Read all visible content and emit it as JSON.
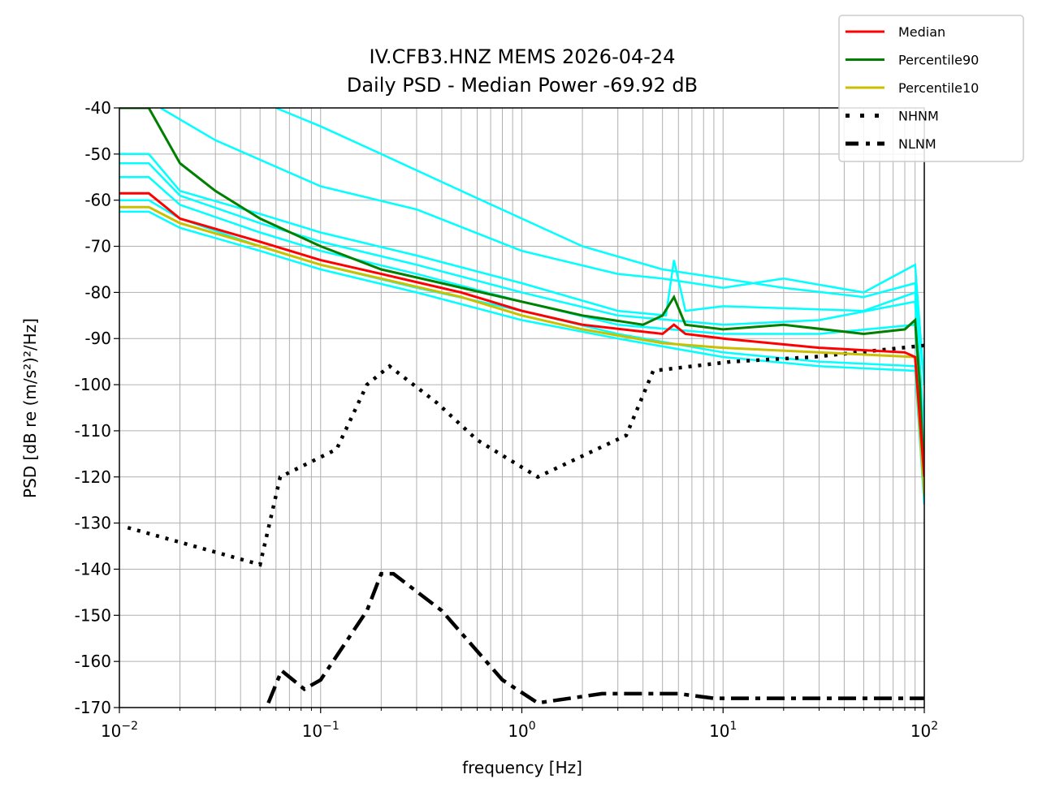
{
  "chart_data": {
    "type": "line",
    "title": "IV.CFB3.HNZ MEMS 2026-04-24",
    "subtitle": "Daily PSD - Median Power -69.92 dB",
    "xlabel": "frequency [Hz]",
    "ylabel": "PSD [dB re (m/s²)²/Hz]",
    "xscale": "log",
    "xlim": [
      0.01,
      100
    ],
    "ylim": [
      -170,
      -40
    ],
    "grid": true,
    "legend_placement": "top-right",
    "xticks": [
      0.01,
      0.1,
      1,
      10,
      100
    ],
    "xtick_labels": [
      "10^-2",
      "10^-1",
      "10^0",
      "10^1",
      "10^2"
    ],
    "yticks": [
      -40,
      -50,
      -60,
      -70,
      -80,
      -90,
      -100,
      -110,
      -120,
      -130,
      -140,
      -150,
      -160,
      -170
    ],
    "ytick_labels": [
      "-40",
      "-50",
      "-60",
      "-70",
      "-80",
      "-90",
      "-100",
      "-110",
      "-120",
      "-130",
      "-140",
      "-150",
      "-160",
      "-170"
    ],
    "colors": {
      "median": "#ff0000",
      "p90": "#008000",
      "p10": "#c8c000",
      "hourly": "#00ffff",
      "model": "#000000"
    },
    "hourly_series": [
      {
        "x": [
          0.06,
          0.1,
          0.2,
          0.5,
          1,
          2,
          5,
          10,
          20,
          50,
          90,
          100
        ],
        "y": [
          -40,
          -44,
          -50,
          -58,
          -64,
          -70,
          -75,
          -77,
          -79,
          -81,
          -78,
          -100
        ]
      },
      {
        "x": [
          0.016,
          0.03,
          0.1,
          0.3,
          1,
          3,
          5,
          10,
          20,
          50,
          90,
          100
        ],
        "y": [
          -40,
          -47,
          -57,
          -62,
          -71,
          -76,
          -77,
          -79,
          -77,
          -80,
          -74,
          -100
        ]
      },
      {
        "x": [
          0.01,
          0.014,
          0.02,
          0.05,
          0.1,
          0.3,
          1,
          3,
          5.2,
          5.7,
          6.5,
          10,
          50,
          90,
          100
        ],
        "y": [
          -50,
          -50,
          -58,
          -63,
          -67,
          -72,
          -78,
          -84,
          -85,
          -73,
          -84,
          -83,
          -84,
          -80,
          -110
        ]
      },
      {
        "x": [
          0.01,
          0.014,
          0.02,
          0.05,
          0.1,
          0.3,
          1,
          3,
          10,
          30,
          90,
          100
        ],
        "y": [
          -52,
          -52,
          -59,
          -65,
          -69,
          -74,
          -80,
          -85,
          -87,
          -86,
          -82,
          -115
        ]
      },
      {
        "x": [
          0.01,
          0.014,
          0.02,
          0.05,
          0.1,
          0.3,
          1,
          3,
          10,
          30,
          90,
          100
        ],
        "y": [
          -55,
          -55,
          -61,
          -67,
          -71,
          -76,
          -82,
          -87,
          -89,
          -89,
          -87,
          -118
        ]
      },
      {
        "x": [
          0.01,
          0.014,
          0.02,
          0.05,
          0.1,
          0.3,
          1,
          3,
          10,
          30,
          90,
          100
        ],
        "y": [
          -60,
          -60,
          -64,
          -70,
          -74,
          -79,
          -84,
          -89,
          -93,
          -95,
          -96,
          -124
        ]
      },
      {
        "x": [
          0.01,
          0.014,
          0.02,
          0.05,
          0.1,
          0.3,
          1,
          3,
          10,
          30,
          90,
          100
        ],
        "y": [
          -62.5,
          -62.5,
          -66,
          -71,
          -75,
          -80,
          -86,
          -90,
          -94,
          -96,
          -97,
          -126
        ]
      }
    ],
    "series": [
      {
        "name": "Median",
        "color": "#ff0000",
        "style": "solid",
        "x": [
          0.01,
          0.014,
          0.02,
          0.05,
          0.1,
          0.2,
          0.5,
          1,
          2,
          5,
          5.7,
          6.5,
          10,
          30,
          80,
          90,
          100
        ],
        "y": [
          -58.5,
          -58.5,
          -64,
          -69,
          -73,
          -76,
          -80,
          -84,
          -87,
          -89,
          -87,
          -89,
          -90,
          -92,
          -93,
          -94,
          -120
        ]
      },
      {
        "name": "Percentile90",
        "color": "#008000",
        "style": "solid",
        "x": [
          0.01,
          0.014,
          0.02,
          0.03,
          0.05,
          0.1,
          0.2,
          0.4,
          1,
          2,
          4,
          5,
          5.7,
          6.5,
          10,
          20,
          50,
          80,
          90,
          95,
          100
        ],
        "y": [
          -40,
          -40,
          -52,
          -58,
          -64,
          -70,
          -75,
          -78,
          -82,
          -85,
          -87,
          -85,
          -81,
          -87,
          -88,
          -87,
          -89,
          -88,
          -86,
          -100,
          -122
        ]
      },
      {
        "name": "Percentile10",
        "color": "#c8c000",
        "style": "solid",
        "x": [
          0.01,
          0.014,
          0.02,
          0.05,
          0.1,
          0.2,
          0.5,
          1,
          2,
          5,
          10,
          30,
          90,
          100
        ],
        "y": [
          -61.5,
          -61.5,
          -65,
          -70,
          -74,
          -77,
          -81,
          -85,
          -88,
          -91,
          -92,
          -93,
          -94,
          -124
        ]
      },
      {
        "name": "NHNM",
        "color": "#000000",
        "style": "dotted",
        "x": [
          0.011,
          0.05,
          0.063,
          0.12,
          0.17,
          0.22,
          0.38,
          0.6,
          1.2,
          3.3,
          4.5,
          11,
          28,
          100
        ],
        "y": [
          -131,
          -139,
          -120,
          -114,
          -100,
          -96,
          -104,
          -112,
          -120,
          -111,
          -97,
          -95,
          -94,
          -91.5
        ]
      },
      {
        "name": "NLNM",
        "color": "#000000",
        "style": "dashdot",
        "x": [
          0.055,
          0.064,
          0.083,
          0.1,
          0.17,
          0.2,
          0.23,
          0.4,
          0.8,
          1.2,
          2.5,
          6,
          9,
          100
        ],
        "y": [
          -169,
          -162,
          -166,
          -164,
          -149,
          -141,
          -141,
          -149,
          -164,
          -169,
          -167,
          -167,
          -168,
          -168
        ]
      }
    ]
  }
}
